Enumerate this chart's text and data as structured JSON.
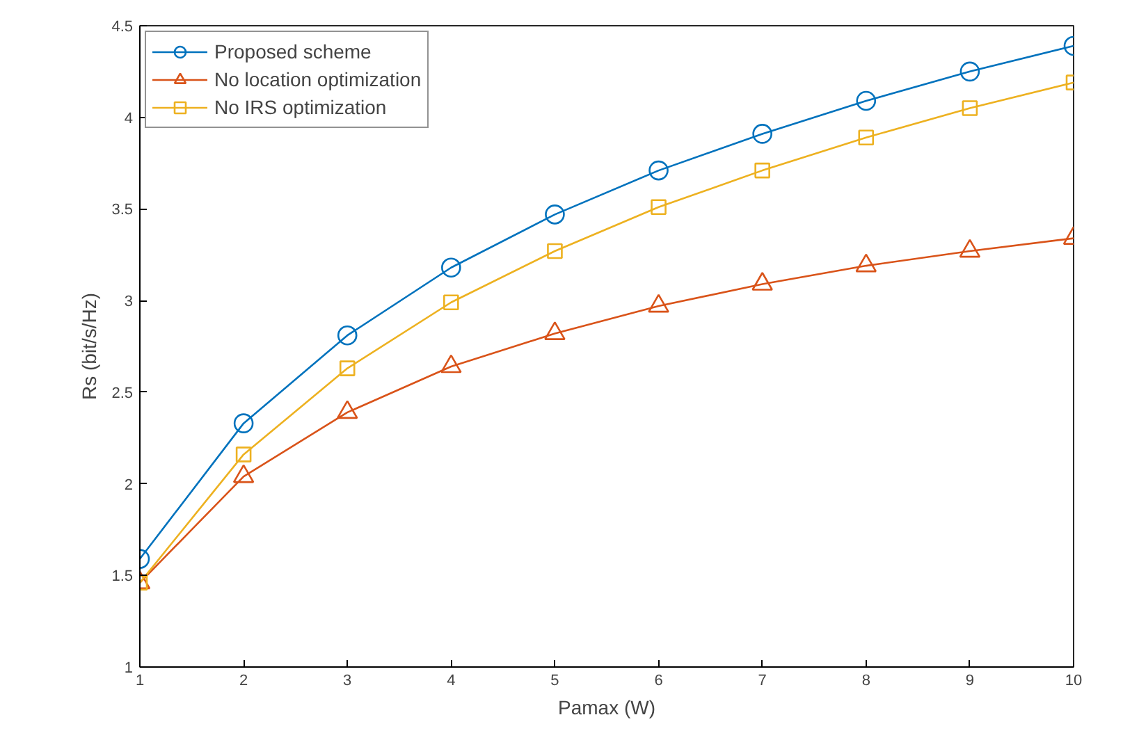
{
  "chart_data": {
    "type": "line",
    "xlabel": "Pamax (W)",
    "ylabel": "Rs (bit/s/Hz)",
    "x": [
      1,
      2,
      3,
      4,
      5,
      6,
      7,
      8,
      9,
      10
    ],
    "xlim": [
      1,
      10
    ],
    "xticks": [
      1,
      2,
      3,
      4,
      5,
      6,
      7,
      8,
      9,
      10
    ],
    "ylim": [
      1,
      4.5
    ],
    "yticks": [
      1,
      1.5,
      2,
      2.5,
      3,
      3.5,
      4,
      4.5
    ],
    "grid": false,
    "legend": "top left",
    "line_style": "solid",
    "series": [
      {
        "name": "Proposed scheme",
        "color": "#0072bd",
        "marker": "circle",
        "values": [
          1.59,
          2.33,
          2.81,
          3.18,
          3.47,
          3.71,
          3.91,
          4.09,
          4.25,
          4.39
        ]
      },
      {
        "name": "No location optimization",
        "color": "#d95319",
        "marker": "triangle",
        "values": [
          1.46,
          2.04,
          2.39,
          2.64,
          2.82,
          2.97,
          3.09,
          3.19,
          3.27,
          3.34
        ]
      },
      {
        "name": "No IRS optimization",
        "color": "#edb120",
        "marker": "square",
        "values": [
          1.46,
          2.16,
          2.63,
          2.99,
          3.27,
          3.51,
          3.71,
          3.89,
          4.05,
          4.19
        ]
      }
    ]
  }
}
